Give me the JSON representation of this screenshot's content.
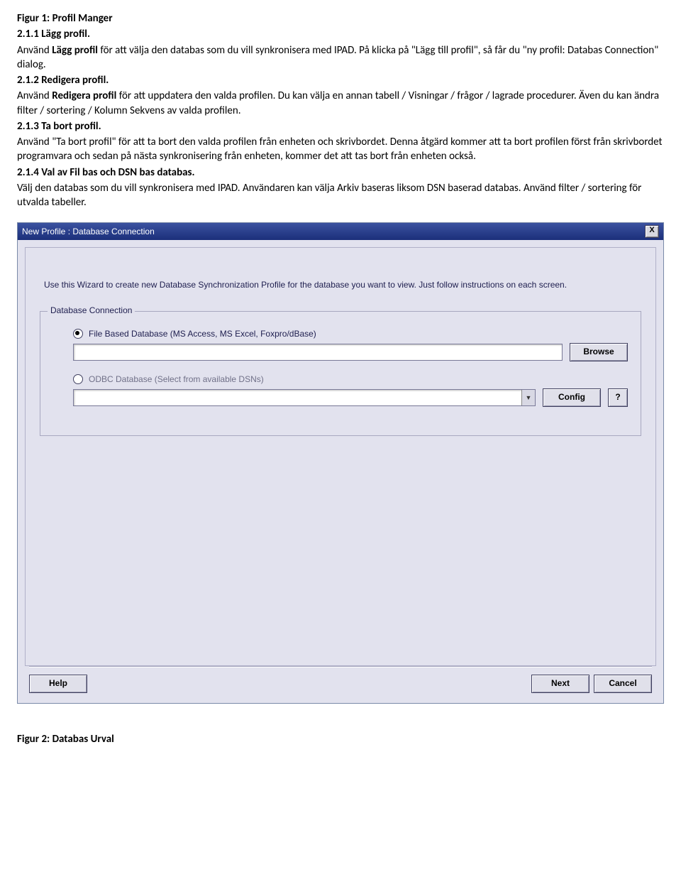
{
  "colors": {
    "titlebar_bg_top": "#3b52a0",
    "titlebar_bg_bottom": "#1b2f7a",
    "panel_bg": "#e2e2ee",
    "border": "#a8a8c0",
    "text": "#202050"
  },
  "doc": {
    "fig1": "Figur 1: Profil Manger",
    "h211": "2.1.1 Lägg profil.",
    "p211a": "Använd ",
    "p211b": "Lägg profil",
    "p211c": " för att välja den databas som du vill synkronisera med IPAD. På klicka på \"Lägg till profil\", så får du \"ny profil: Databas Connection\" dialog.",
    "h212": "2.1.2 Redigera profil.",
    "p212a": "Använd ",
    "p212b": "Redigera profil",
    "p212c": " för att uppdatera den valda profilen. Du kan välja en annan tabell / Visningar / frågor / lagrade procedurer. Även du kan ändra filter / sortering / Kolumn Sekvens av valda profilen.",
    "h213": "2.1.3 Ta bort profil.",
    "p213": "Använd \"Ta bort profil\" för att ta bort den valda profilen från enheten och skrivbordet. Denna åtgärd kommer att ta bort profilen först från skrivbordet programvara och sedan på nästa synkronisering från enheten, kommer det att tas bort från enheten också.",
    "h214": "2.1.4 Val av Fil bas och DSN bas databas.",
    "p214": "Välj den databas som du vill synkronisera med IPAD. Användaren kan välja Arkiv baseras liksom DSN baserad databas. Använd filter / sortering för utvalda tabeller.",
    "fig2": "Figur 2: Databas Urval"
  },
  "dialog": {
    "title": "New Profile : Database Connection",
    "close": "X",
    "wizard_text": "Use this Wizard to create new Database Synchronization Profile for the database you want to view. Just follow instructions on each screen.",
    "group_label": "Database Connection",
    "radio_file_label": "File Based Database (MS Access, MS Excel, Foxpro/dBase)",
    "radio_odbc_label": "ODBC Database (Select from available DSNs)",
    "browse": "Browse",
    "config": "Config",
    "question": "?",
    "help": "Help",
    "next": "Next",
    "cancel": "Cancel"
  }
}
